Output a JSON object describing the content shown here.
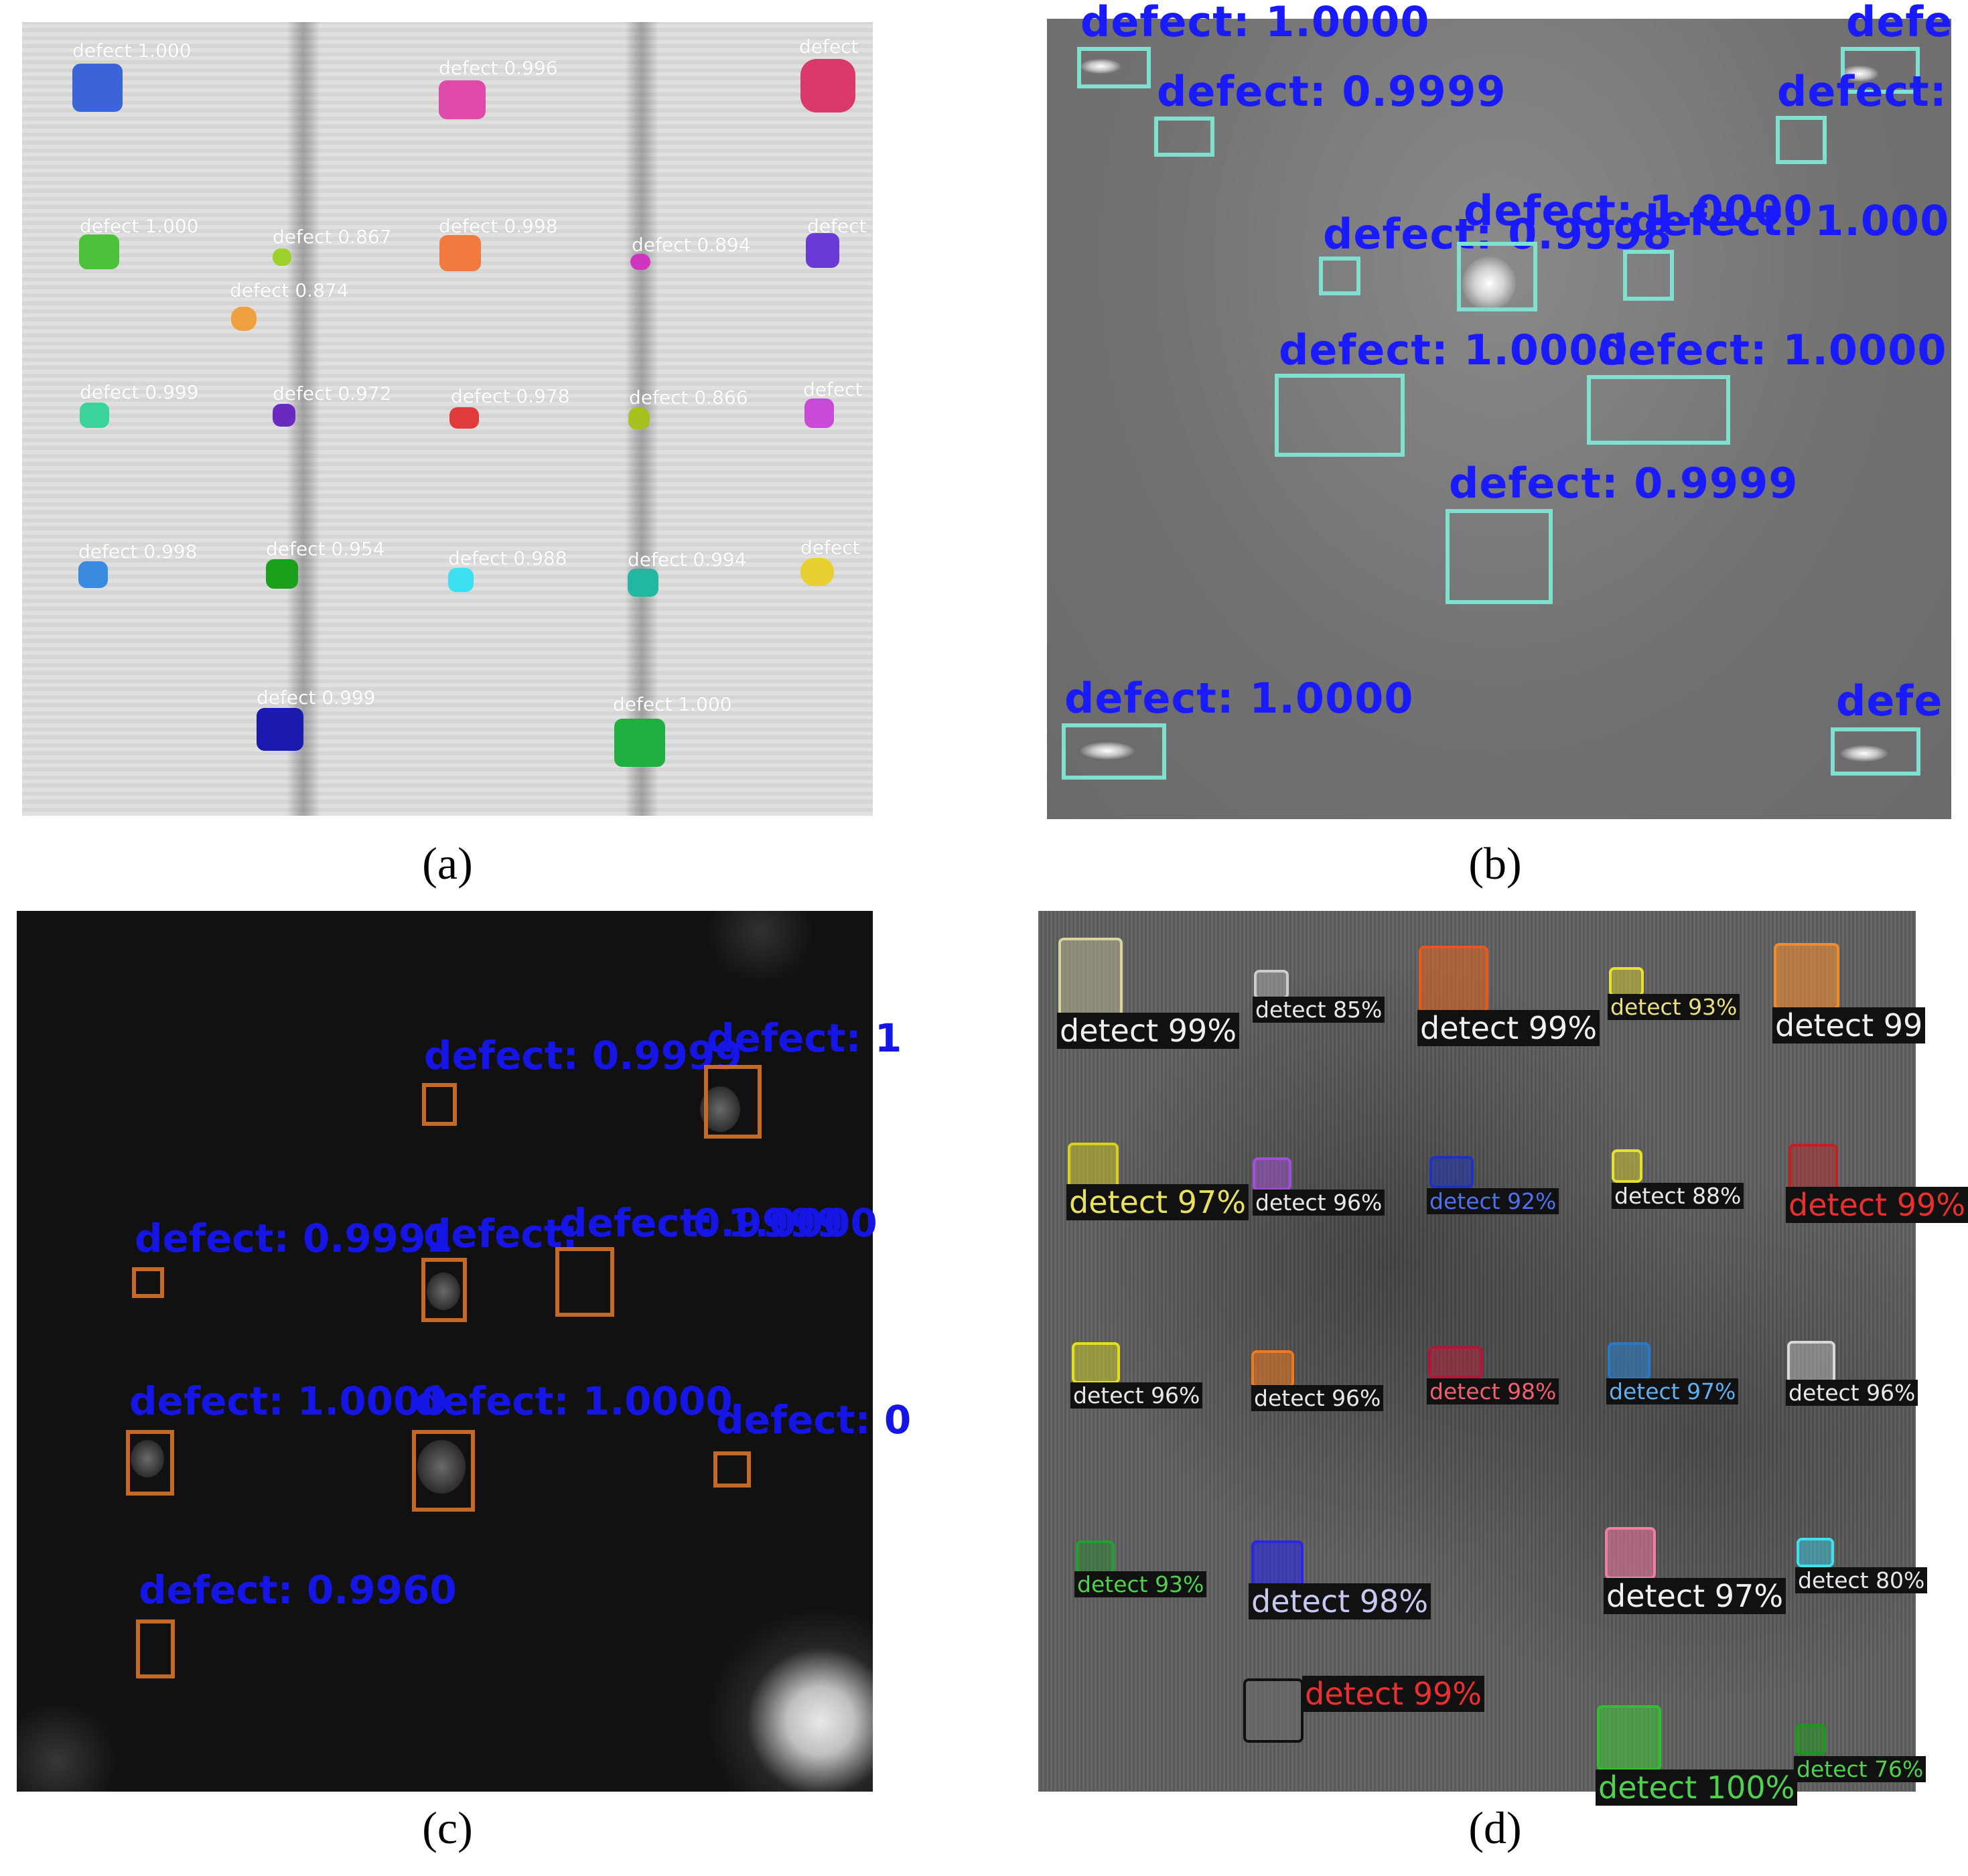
{
  "panels": {
    "a": {
      "caption": "(a)",
      "labels": [
        "defect 1.000",
        "defect 0.996",
        "defect",
        "defect 1.000",
        "defect 0.867",
        "defect 0.998",
        "defect 0.894",
        "defect",
        "defect 0.874",
        "defect 0.999",
        "defect 0.972",
        "defect 0.978",
        "defect 0.866",
        "defect",
        "defect 0.998",
        "defect 0.954",
        "defect 0.988",
        "defect 0.994",
        "defect",
        "defect 0.999",
        "defect 1.000"
      ],
      "colors": {
        "blue": "#3b64d6",
        "pink": "#e04aa8",
        "crimson": "#d93a6a",
        "green": "#4cc13a",
        "lime": "#9cd12a",
        "orange": "#f07a40",
        "magenta": "#d035c0",
        "violet": "#6a3ad6",
        "amber": "#f0a040",
        "teal": "#3ad49a",
        "purple": "#6a2ac0",
        "red": "#e03a3a",
        "olive": "#a8c020",
        "orchid": "#c84ad6",
        "sky": "#3a8ae0",
        "dkgreen": "#1aa01a",
        "cyan": "#3ae0f0",
        "seagreen": "#20b8a0",
        "yellow": "#e8d030",
        "navy": "#1a1ab0",
        "emerald": "#20b040"
      }
    },
    "b": {
      "caption": "(b)",
      "labels": [
        "defect: 1.0000",
        "defe",
        "defect: 0.9999",
        "defect:",
        "defect: 0.9998",
        "defect: 1.0000",
        "defect: 1.000",
        "defect: 1.0000",
        "defect: 1.0000",
        "defect: 0.9999",
        "defect: 1.0000",
        "defe"
      ],
      "box_color": "#7fe0d0",
      "text_color": "#1a1aff"
    },
    "c": {
      "caption": "(c)",
      "labels": [
        "defect: 0.9999",
        "defect: 1",
        "defect: 0.9991",
        "defect:",
        "defect: 1.0000",
        "0.9999",
        "defect: 1.0000",
        "defect: 1.0000",
        "defect: 0",
        "defect: 0.9960"
      ],
      "box_color": "#c46a26",
      "text_color": "#1515e6"
    },
    "d": {
      "caption": "(d)",
      "labels": [
        "detect 99%",
        "detect 85%",
        "detect 99%",
        "detect 93%",
        "detect 99",
        "detect 97%",
        "detect 96%",
        "detect 92%",
        "detect 88%",
        "detect 99%",
        "detect 96%",
        "detect 96%",
        "detect 98%",
        "detect 97%",
        "detect 96%",
        "detect 93%",
        "detect 98%",
        "detect 97%",
        "detect 80%",
        "detect 99%",
        "detect 100%",
        "detect 76%"
      ]
    }
  }
}
